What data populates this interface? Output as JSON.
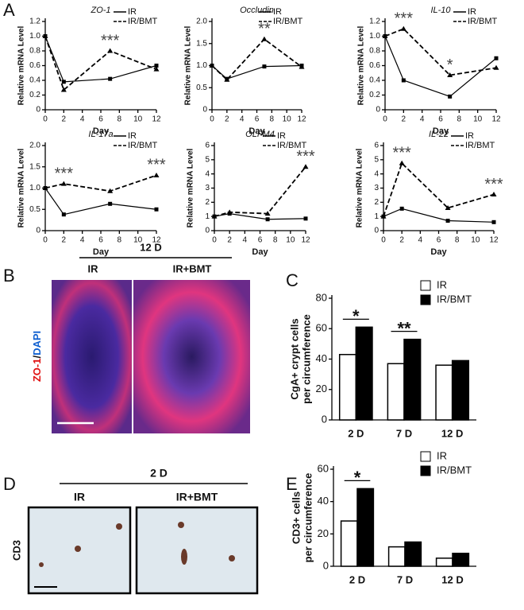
{
  "panel_labels": [
    "A",
    "B",
    "C",
    "D",
    "E"
  ],
  "images": [
    {
      "title": "12 D",
      "labels": [
        "IR",
        "IR+BMT"
      ],
      "stain": [
        "ZO-1",
        "/",
        "DAPI"
      ]
    },
    {
      "title": "2 D",
      "labels": [
        "IR",
        "IR+BMT"
      ],
      "stain": [
        "CD3"
      ]
    }
  ],
  "chart_data": [
    {
      "type": "line",
      "title": "ZO-1",
      "x_label": "Day",
      "y_label": "Relative mRNA Level",
      "x": [
        0,
        2,
        7,
        12
      ],
      "xlim": [
        0,
        12
      ],
      "xticks": [
        0,
        2,
        4,
        6,
        8,
        10,
        12
      ],
      "ylim": [
        0,
        1.2
      ],
      "yticks": [
        0,
        0.2,
        0.4,
        0.6,
        0.8,
        {
          "value": 1.0,
          "label": "1.0"
        },
        1.2
      ],
      "series": [
        {
          "name": "IR",
          "color": "#000000",
          "marker": "square",
          "dashed": false,
          "values": [
            1.0,
            0.38,
            0.42,
            0.6
          ]
        },
        {
          "name": "IR/BMT",
          "color": "#000000",
          "marker": "triangle",
          "dashed": true,
          "values": [
            1.0,
            0.27,
            0.8,
            0.55
          ]
        }
      ],
      "annotations": [
        {
          "text": "***",
          "x": 7
        }
      ]
    },
    {
      "type": "line",
      "title": "Occludin",
      "x_label": "Day",
      "y_label": "Relative mRNA Level",
      "x": [
        0,
        2,
        7,
        12
      ],
      "xlim": [
        0,
        12
      ],
      "xticks": [
        0,
        2,
        4,
        6,
        8,
        10,
        12
      ],
      "ylim": [
        0,
        2.0
      ],
      "yticks": [
        0,
        0.5,
        {
          "value": 1.0,
          "label": "1.0"
        },
        1.5,
        {
          "value": 2.0,
          "label": "2.0"
        }
      ],
      "series": [
        {
          "name": "IR",
          "color": "#000000",
          "marker": "square",
          "dashed": false,
          "values": [
            1.0,
            0.7,
            0.98,
            1.0
          ]
        },
        {
          "name": "IR/BMT",
          "color": "#000000",
          "marker": "triangle",
          "dashed": true,
          "values": [
            1.0,
            0.68,
            1.6,
            0.97
          ]
        }
      ],
      "annotations": [
        {
          "text": "**",
          "x": 7
        }
      ]
    },
    {
      "type": "line",
      "title": "IL-10",
      "x_label": "Day",
      "y_label": "Relative mRNA Level",
      "x": [
        0,
        2,
        7,
        12
      ],
      "xlim": [
        0,
        12
      ],
      "xticks": [
        0,
        2,
        4,
        6,
        8,
        10,
        12
      ],
      "ylim": [
        0,
        1.2
      ],
      "yticks": [
        0,
        0.2,
        0.4,
        0.6,
        0.8,
        {
          "value": 1.0,
          "label": "1.0"
        },
        1.2
      ],
      "series": [
        {
          "name": "IR",
          "color": "#000000",
          "marker": "square",
          "dashed": false,
          "values": [
            1.0,
            0.4,
            0.18,
            0.7
          ]
        },
        {
          "name": "IR/BMT",
          "color": "#000000",
          "marker": "triangle",
          "dashed": true,
          "values": [
            1.0,
            1.1,
            0.47,
            0.57
          ]
        }
      ],
      "annotations": [
        {
          "text": "***",
          "x": 2
        },
        {
          "text": "*",
          "x": 7
        }
      ]
    },
    {
      "type": "line",
      "title": "IL-17a",
      "x_label": "Day",
      "y_label": "Relative mRNA Level",
      "x": [
        0,
        2,
        7,
        12
      ],
      "xlim": [
        0,
        12
      ],
      "xticks": [
        0,
        2,
        4,
        6,
        8,
        10,
        12
      ],
      "ylim": [
        0,
        2.0
      ],
      "yticks": [
        0,
        0.5,
        {
          "value": 1.0,
          "label": "1.0"
        },
        1.5,
        {
          "value": 2.0,
          "label": "2.0"
        }
      ],
      "series": [
        {
          "name": "IR",
          "color": "#000000",
          "marker": "square",
          "dashed": false,
          "values": [
            1.0,
            0.38,
            0.63,
            0.5
          ]
        },
        {
          "name": "IR/BMT",
          "color": "#000000",
          "marker": "triangle",
          "dashed": true,
          "values": [
            1.0,
            1.1,
            0.93,
            1.3
          ]
        }
      ],
      "annotations": [
        {
          "text": "***",
          "x": 2
        },
        {
          "text": "***",
          "x": 12
        }
      ]
    },
    {
      "type": "line",
      "title": "OLFM4",
      "x_label": "Day",
      "y_label": "Relative mRNA Level",
      "x": [
        0,
        2,
        7,
        12
      ],
      "xlim": [
        0,
        12
      ],
      "xticks": [
        0,
        2,
        4,
        6,
        8,
        10,
        12
      ],
      "ylim": [
        0,
        6
      ],
      "yticks": [
        0,
        1,
        2,
        3,
        4,
        5,
        6
      ],
      "series": [
        {
          "name": "IR",
          "color": "#000000",
          "marker": "square",
          "dashed": false,
          "values": [
            1.0,
            1.2,
            0.8,
            0.85
          ]
        },
        {
          "name": "IR/BMT",
          "color": "#000000",
          "marker": "triangle",
          "dashed": true,
          "values": [
            1.0,
            1.3,
            1.2,
            4.5
          ]
        }
      ],
      "annotations": [
        {
          "text": "***",
          "x": 12
        }
      ]
    },
    {
      "type": "line",
      "title": "IL-22",
      "x_label": "Day",
      "y_label": "Relative mRNA Level",
      "x": [
        0,
        2,
        7,
        12
      ],
      "xlim": [
        0,
        12
      ],
      "xticks": [
        0,
        2,
        4,
        6,
        8,
        10,
        12
      ],
      "ylim": [
        0,
        6
      ],
      "yticks": [
        0,
        1,
        2,
        3,
        4,
        5,
        6
      ],
      "series": [
        {
          "name": "IR",
          "color": "#000000",
          "marker": "square",
          "dashed": false,
          "values": [
            1.0,
            1.55,
            0.7,
            0.6
          ]
        },
        {
          "name": "IR/BMT",
          "color": "#000000",
          "marker": "triangle",
          "dashed": true,
          "values": [
            1.0,
            4.75,
            1.6,
            2.55
          ]
        }
      ],
      "annotations": [
        {
          "text": "***",
          "x": 2
        },
        {
          "text": "***",
          "x": 12
        }
      ]
    },
    {
      "type": "bar",
      "y_label": [
        "CgA+ crypt cells",
        "per circumference"
      ],
      "categories": [
        "2 D",
        "7 D",
        "12 D"
      ],
      "ylim": [
        0,
        80
      ],
      "yticks": [
        0,
        20,
        40,
        60,
        80
      ],
      "series": [
        {
          "name": "IR",
          "color": "#ffffff",
          "values": [
            43,
            37,
            36
          ]
        },
        {
          "name": "IR/BMT",
          "color": "#000000",
          "values": [
            61,
            53,
            39
          ]
        }
      ],
      "annotations": [
        {
          "text": "*",
          "category": "2 D"
        },
        {
          "text": "**",
          "category": "7 D"
        }
      ]
    },
    {
      "type": "bar",
      "y_label": [
        "CD3+ cells",
        "per circumference"
      ],
      "categories": [
        "2 D",
        "7 D",
        "12 D"
      ],
      "ylim": [
        0,
        60
      ],
      "yticks": [
        0,
        20,
        40,
        60
      ],
      "series": [
        {
          "name": "IR",
          "color": "#ffffff",
          "values": [
            28,
            12,
            5
          ]
        },
        {
          "name": "IR/BMT",
          "color": "#000000",
          "values": [
            48,
            15,
            8
          ]
        }
      ],
      "annotations": [
        {
          "text": "*",
          "category": "2 D"
        }
      ]
    }
  ]
}
